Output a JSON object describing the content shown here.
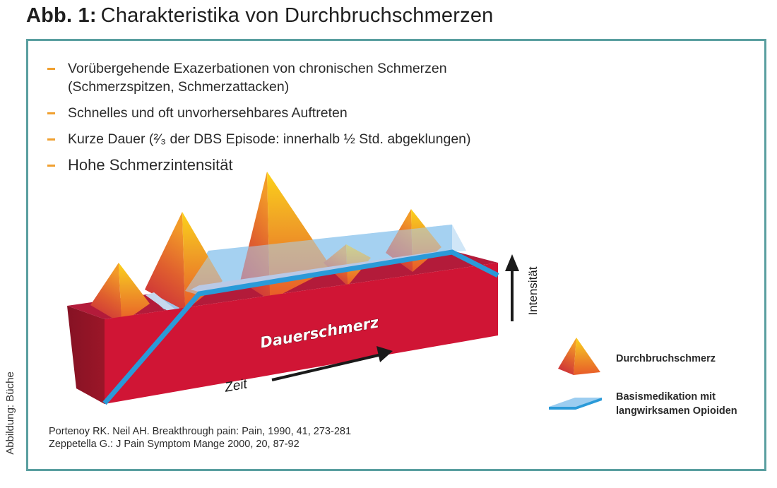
{
  "title": {
    "label": "Abb. 1:",
    "text": "Charakteristika von Durchbruchschmerzen"
  },
  "credit": "Abbildung: Büche",
  "bullets": [
    {
      "line1": "Vorübergehende Exazerbationen von chronischen Schmerzen",
      "line2": "(Schmerzspitzen, Schmerzattacken)"
    },
    {
      "line1": "Schnelles und oft unvorhersehbares Auftreten"
    },
    {
      "line1": "Kurze Dauer (²⁄₃ der DBS Episode: innerhalb ½ Std. abgeklungen)"
    },
    {
      "line1": "Hohe Schmerzintensität"
    }
  ],
  "diagram": {
    "block_label": "Dauerschmerz",
    "x_axis_label": "Zeit",
    "y_axis_label": "Intensität",
    "peak_count": 5
  },
  "legend": {
    "items": [
      {
        "label": "Durchbruchschmerz",
        "icon": "pyramid-icon"
      },
      {
        "label_line1": "Basismedikation mit",
        "label_line2": "langwirksamen Opioiden",
        "icon": "blue-plate-icon"
      }
    ]
  },
  "references": [
    "Portenoy RK. Neil AH. Breakthrough pain: Pain, 1990, 41, 273-281",
    "Zeppetella G.: J Pain Symptom Mange 2000, 20, 87-92"
  ],
  "colors": {
    "frame": "#5a9fa0",
    "bullet": "#f0a030",
    "block_front": "#d01535",
    "block_top": "#b01c3a",
    "block_side": "#8c1526",
    "medication": "#2a9ad8",
    "medication_light": "#9ccdf0",
    "peak_top": "#f8c21e",
    "peak_base": "#e0452a"
  }
}
